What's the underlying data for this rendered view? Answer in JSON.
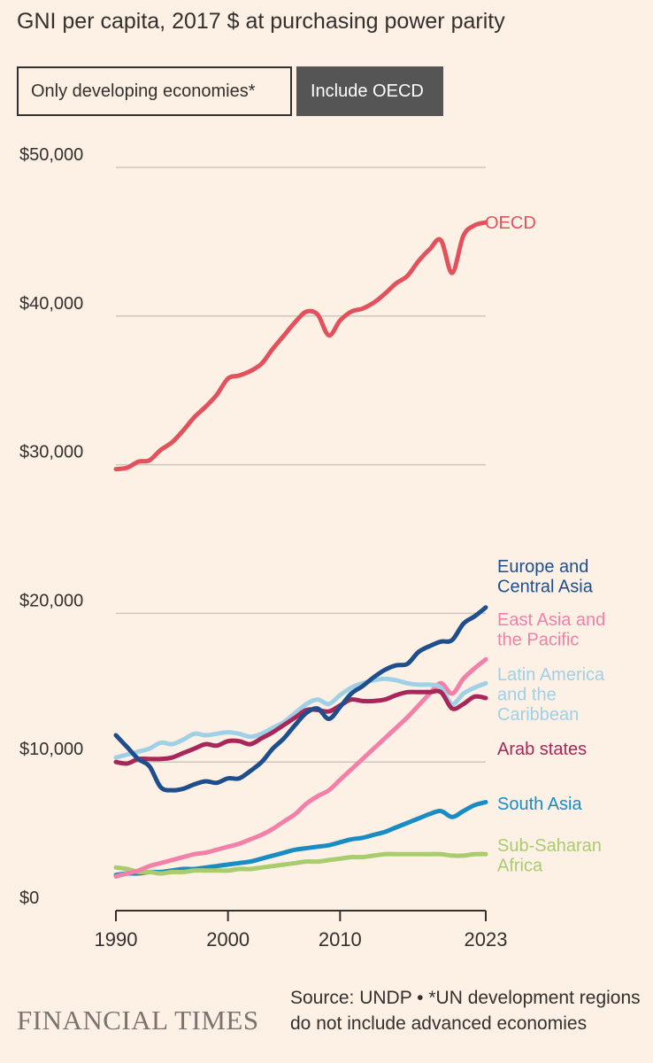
{
  "title": "GNI per capita, 2017 $ at purchasing power parity",
  "toggles": {
    "developing": "Only developing economies*",
    "oecd": "Include OECD"
  },
  "footer": {
    "brand": "FINANCIAL TIMES",
    "source": "Source: UNDP • *UN development regions do not include advanced economies"
  },
  "colors": {
    "background": "#fdf1e6",
    "grid": "#cfc6bd"
  },
  "chart_data": {
    "type": "line",
    "title": "GNI per capita, 2017 $ at purchasing power parity",
    "xlabel": "",
    "ylabel": "",
    "xlim": [
      1990,
      2023
    ],
    "ylim": [
      0,
      50000
    ],
    "y_ticks": [
      0,
      10000,
      20000,
      30000,
      40000,
      50000
    ],
    "y_tick_labels": [
      "$0",
      "$10,000",
      "$20,000",
      "$30,000",
      "$40,000",
      "$50,000"
    ],
    "x_ticks": [
      1990,
      2000,
      2010,
      2023
    ],
    "x_tick_labels": [
      "1990",
      "2000",
      "2010",
      "2023"
    ],
    "grid": true,
    "series": [
      {
        "name": "OECD",
        "label_lines": [
          "OECD"
        ],
        "color": "#e3515c",
        "x": [
          1990,
          1991,
          1992,
          1993,
          1994,
          1995,
          1996,
          1997,
          1998,
          1999,
          2000,
          2001,
          2002,
          2003,
          2004,
          2005,
          2006,
          2007,
          2008,
          2009,
          2010,
          2011,
          2012,
          2013,
          2014,
          2015,
          2016,
          2017,
          2018,
          2019,
          2020,
          2021,
          2022,
          2023
        ],
        "y": [
          29700,
          29800,
          30200,
          30300,
          31000,
          31500,
          32300,
          33200,
          33900,
          34700,
          35800,
          36000,
          36300,
          36800,
          37800,
          38700,
          39600,
          40300,
          40100,
          38700,
          39700,
          40300,
          40500,
          40900,
          41500,
          42200,
          42700,
          43700,
          44500,
          45100,
          42900,
          45400,
          46100,
          46300
        ]
      },
      {
        "name": "Europe and Central Asia",
        "label_lines": [
          "Europe and",
          "Central Asia"
        ],
        "color": "#1f4e8c",
        "x": [
          1990,
          1991,
          1992,
          1993,
          1994,
          1995,
          1996,
          1997,
          1998,
          1999,
          2000,
          2001,
          2002,
          2003,
          2004,
          2005,
          2006,
          2007,
          2008,
          2009,
          2010,
          2011,
          2012,
          2013,
          2014,
          2015,
          2016,
          2017,
          2018,
          2019,
          2020,
          2021,
          2022,
          2023
        ],
        "y": [
          11800,
          11000,
          10200,
          9700,
          8300,
          8100,
          8200,
          8500,
          8700,
          8600,
          8900,
          8900,
          9400,
          10000,
          10900,
          11600,
          12500,
          13300,
          13600,
          12900,
          13700,
          14600,
          15100,
          15700,
          16200,
          16500,
          16600,
          17400,
          17800,
          18100,
          18200,
          19300,
          19800,
          20400
        ]
      },
      {
        "name": "East Asia and the Pacific",
        "label_lines": [
          "East Asia and",
          "the Pacific"
        ],
        "color": "#f280a8",
        "x": [
          1990,
          1991,
          1992,
          1993,
          1994,
          1995,
          1996,
          1997,
          1998,
          1999,
          2000,
          2001,
          2002,
          2003,
          2004,
          2005,
          2006,
          2007,
          2008,
          2009,
          2010,
          2011,
          2012,
          2013,
          2014,
          2015,
          2016,
          2017,
          2018,
          2019,
          2020,
          2021,
          2022,
          2023
        ],
        "y": [
          2300,
          2500,
          2700,
          3000,
          3200,
          3400,
          3600,
          3800,
          3900,
          4100,
          4300,
          4500,
          4800,
          5100,
          5500,
          6000,
          6500,
          7200,
          7700,
          8100,
          8800,
          9500,
          10200,
          10900,
          11600,
          12300,
          13000,
          13800,
          14600,
          15300,
          14600,
          15600,
          16300,
          16900
        ]
      },
      {
        "name": "Latin America and the Caribbean",
        "label_lines": [
          "Latin America",
          "and the",
          "Caribbean"
        ],
        "color": "#9fd0e6",
        "x": [
          1990,
          1991,
          1992,
          1993,
          1994,
          1995,
          1996,
          1997,
          1998,
          1999,
          2000,
          2001,
          2002,
          2003,
          2004,
          2005,
          2006,
          2007,
          2008,
          2009,
          2010,
          2011,
          2012,
          2013,
          2014,
          2015,
          2016,
          2017,
          2018,
          2019,
          2020,
          2021,
          2022,
          2023
        ],
        "y": [
          10300,
          10500,
          10700,
          10900,
          11300,
          11200,
          11500,
          11900,
          11800,
          11900,
          12000,
          11900,
          11700,
          11900,
          12300,
          12700,
          13300,
          13900,
          14200,
          13900,
          14500,
          15000,
          15300,
          15500,
          15600,
          15500,
          15300,
          15200,
          15200,
          15000,
          13900,
          14600,
          15000,
          15300
        ]
      },
      {
        "name": "Arab states",
        "label_lines": [
          "Arab states"
        ],
        "color": "#a8275a",
        "x": [
          1990,
          1991,
          1992,
          1993,
          1994,
          1995,
          1996,
          1997,
          1998,
          1999,
          2000,
          2001,
          2002,
          2003,
          2004,
          2005,
          2006,
          2007,
          2008,
          2009,
          2010,
          2011,
          2012,
          2013,
          2014,
          2015,
          2016,
          2017,
          2018,
          2019,
          2020,
          2021,
          2022,
          2023
        ],
        "y": [
          10000,
          9900,
          10200,
          10200,
          10200,
          10300,
          10600,
          10900,
          11200,
          11100,
          11400,
          11400,
          11200,
          11600,
          12000,
          12500,
          13000,
          13500,
          13500,
          13400,
          13800,
          14200,
          14100,
          14100,
          14200,
          14500,
          14700,
          14700,
          14700,
          14700,
          13600,
          13900,
          14400,
          14300
        ]
      },
      {
        "name": "South Asia",
        "label_lines": [
          "South Asia"
        ],
        "color": "#1a8cc4",
        "x": [
          1990,
          1991,
          1992,
          1993,
          1994,
          1995,
          1996,
          1997,
          1998,
          1999,
          2000,
          2001,
          2002,
          2003,
          2004,
          2005,
          2006,
          2007,
          2008,
          2009,
          2010,
          2011,
          2012,
          2013,
          2014,
          2015,
          2016,
          2017,
          2018,
          2019,
          2020,
          2021,
          2022,
          2023
        ],
        "y": [
          2400,
          2500,
          2500,
          2600,
          2600,
          2700,
          2800,
          2800,
          2900,
          3000,
          3100,
          3200,
          3300,
          3500,
          3700,
          3900,
          4100,
          4200,
          4300,
          4400,
          4600,
          4800,
          4900,
          5100,
          5300,
          5600,
          5900,
          6200,
          6500,
          6700,
          6300,
          6700,
          7100,
          7300
        ]
      },
      {
        "name": "Sub-Saharan Africa",
        "label_lines": [
          "Sub-Saharan",
          "Africa"
        ],
        "color": "#a8cc6e",
        "x": [
          1990,
          1991,
          1992,
          1993,
          1994,
          1995,
          1996,
          1997,
          1998,
          1999,
          2000,
          2001,
          2002,
          2003,
          2004,
          2005,
          2006,
          2007,
          2008,
          2009,
          2010,
          2011,
          2012,
          2013,
          2014,
          2015,
          2016,
          2017,
          2018,
          2019,
          2020,
          2021,
          2022,
          2023
        ],
        "y": [
          2900,
          2800,
          2600,
          2600,
          2500,
          2600,
          2600,
          2700,
          2700,
          2700,
          2700,
          2800,
          2800,
          2900,
          3000,
          3100,
          3200,
          3300,
          3300,
          3400,
          3500,
          3600,
          3600,
          3700,
          3800,
          3800,
          3800,
          3800,
          3800,
          3800,
          3700,
          3700,
          3800,
          3800
        ]
      }
    ]
  }
}
